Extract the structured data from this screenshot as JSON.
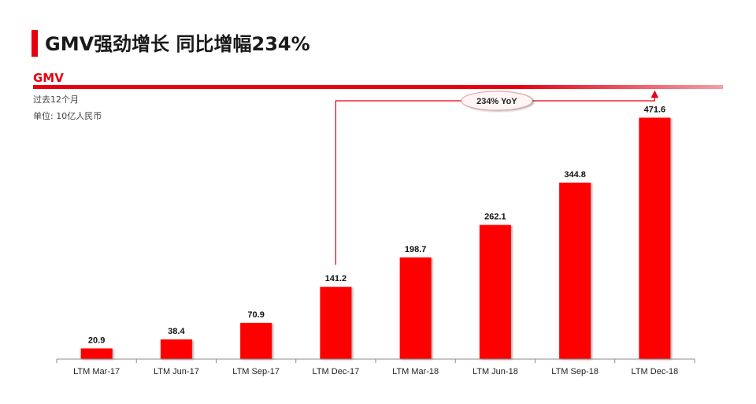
{
  "header": {
    "title": "GMV强劲增长 同比增幅234%",
    "section": "GMV"
  },
  "notes": {
    "period": "过去12个月",
    "unit": "单位: 10亿人民币"
  },
  "colors": {
    "accent": "#e60012",
    "bar": "#ff0000"
  },
  "annotation": {
    "label": "234% YoY",
    "from_category": "LTM Dec-17",
    "to_category": "LTM Dec-18"
  },
  "chart_data": {
    "type": "bar",
    "categories": [
      "LTM Mar-17",
      "LTM Jun-17",
      "LTM Sep-17",
      "LTM Dec-17",
      "LTM Mar-18",
      "LTM Jun-18",
      "LTM Sep-18",
      "LTM Dec-18"
    ],
    "values": [
      20.9,
      38.4,
      70.9,
      141.2,
      198.7,
      262.1,
      344.8,
      471.6
    ],
    "value_labels": [
      "20.9",
      "38.4",
      "70.9",
      "141.2",
      "198.7",
      "262.1",
      "344.8",
      "471.6"
    ],
    "title": "GMV",
    "ylim": [
      0,
      500
    ],
    "grid": false,
    "legend": "none"
  }
}
